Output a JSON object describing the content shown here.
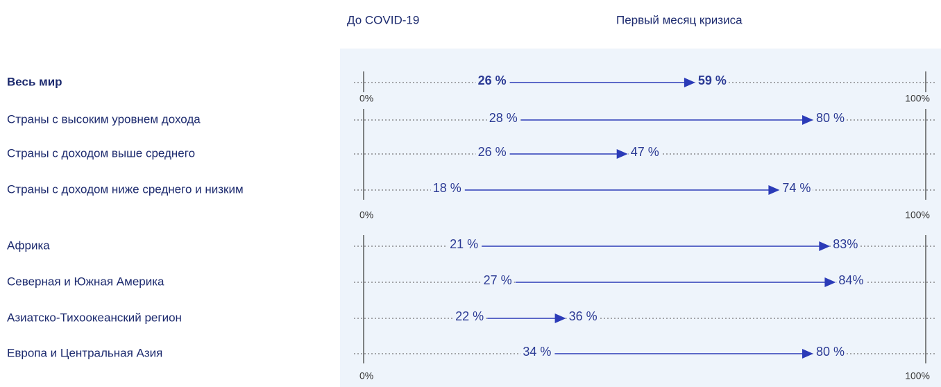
{
  "legend": [
    "До COVID-19",
    "Первый месяц кризиса"
  ],
  "chart_data": [
    {
      "type": "arrow",
      "categories": [
        "Весь мир"
      ],
      "series": [
        {
          "values": [
            26
          ],
          "value_labels": [
            "26 %"
          ]
        },
        {
          "values": [
            59
          ],
          "value_labels": [
            "59 %"
          ]
        }
      ],
      "color": "#2b3bb8",
      "xlim": [
        0,
        100
      ],
      "xticks": [
        {
          "value": 0,
          "label": "0%"
        },
        {
          "value": 100,
          "label": "100%"
        }
      ]
    },
    {
      "type": "arrow",
      "categories": [
        "Страны с высоким уровнем дохода",
        "Страны с доходом выше среднего",
        "Страны с доходом ниже среднего и низким"
      ],
      "series": [
        {
          "values": [
            28,
            26,
            18
          ],
          "value_labels": [
            "28 %",
            "26 %",
            "18 %"
          ]
        },
        {
          "values": [
            80,
            47,
            74
          ],
          "value_labels": [
            "80 %",
            "47 %",
            "74 %"
          ]
        }
      ],
      "color": "#2b3bb8",
      "xlim": [
        0,
        100
      ],
      "xticks": [
        {
          "value": 0,
          "label": "0%"
        },
        {
          "value": 100,
          "label": "100%"
        }
      ]
    },
    {
      "type": "arrow",
      "categories": [
        "Африка",
        "Северная и Южная Америка",
        "Азиатско-Тихоокеанский регион",
        "Европа и Центральная Азия"
      ],
      "series": [
        {
          "values": [
            21,
            27,
            22,
            34
          ],
          "value_labels": [
            "21 %",
            "27 %",
            "22 %",
            "34 %"
          ]
        },
        {
          "values": [
            83,
            84,
            36,
            80
          ],
          "value_labels": [
            "83%",
            "84%",
            "36 %",
            "80 %"
          ]
        }
      ],
      "color": "#2b3bb8",
      "xlim": [
        0,
        100
      ],
      "xticks": [
        {
          "value": 0,
          "label": "0%"
        },
        {
          "value": 100,
          "label": "100%"
        }
      ]
    }
  ]
}
